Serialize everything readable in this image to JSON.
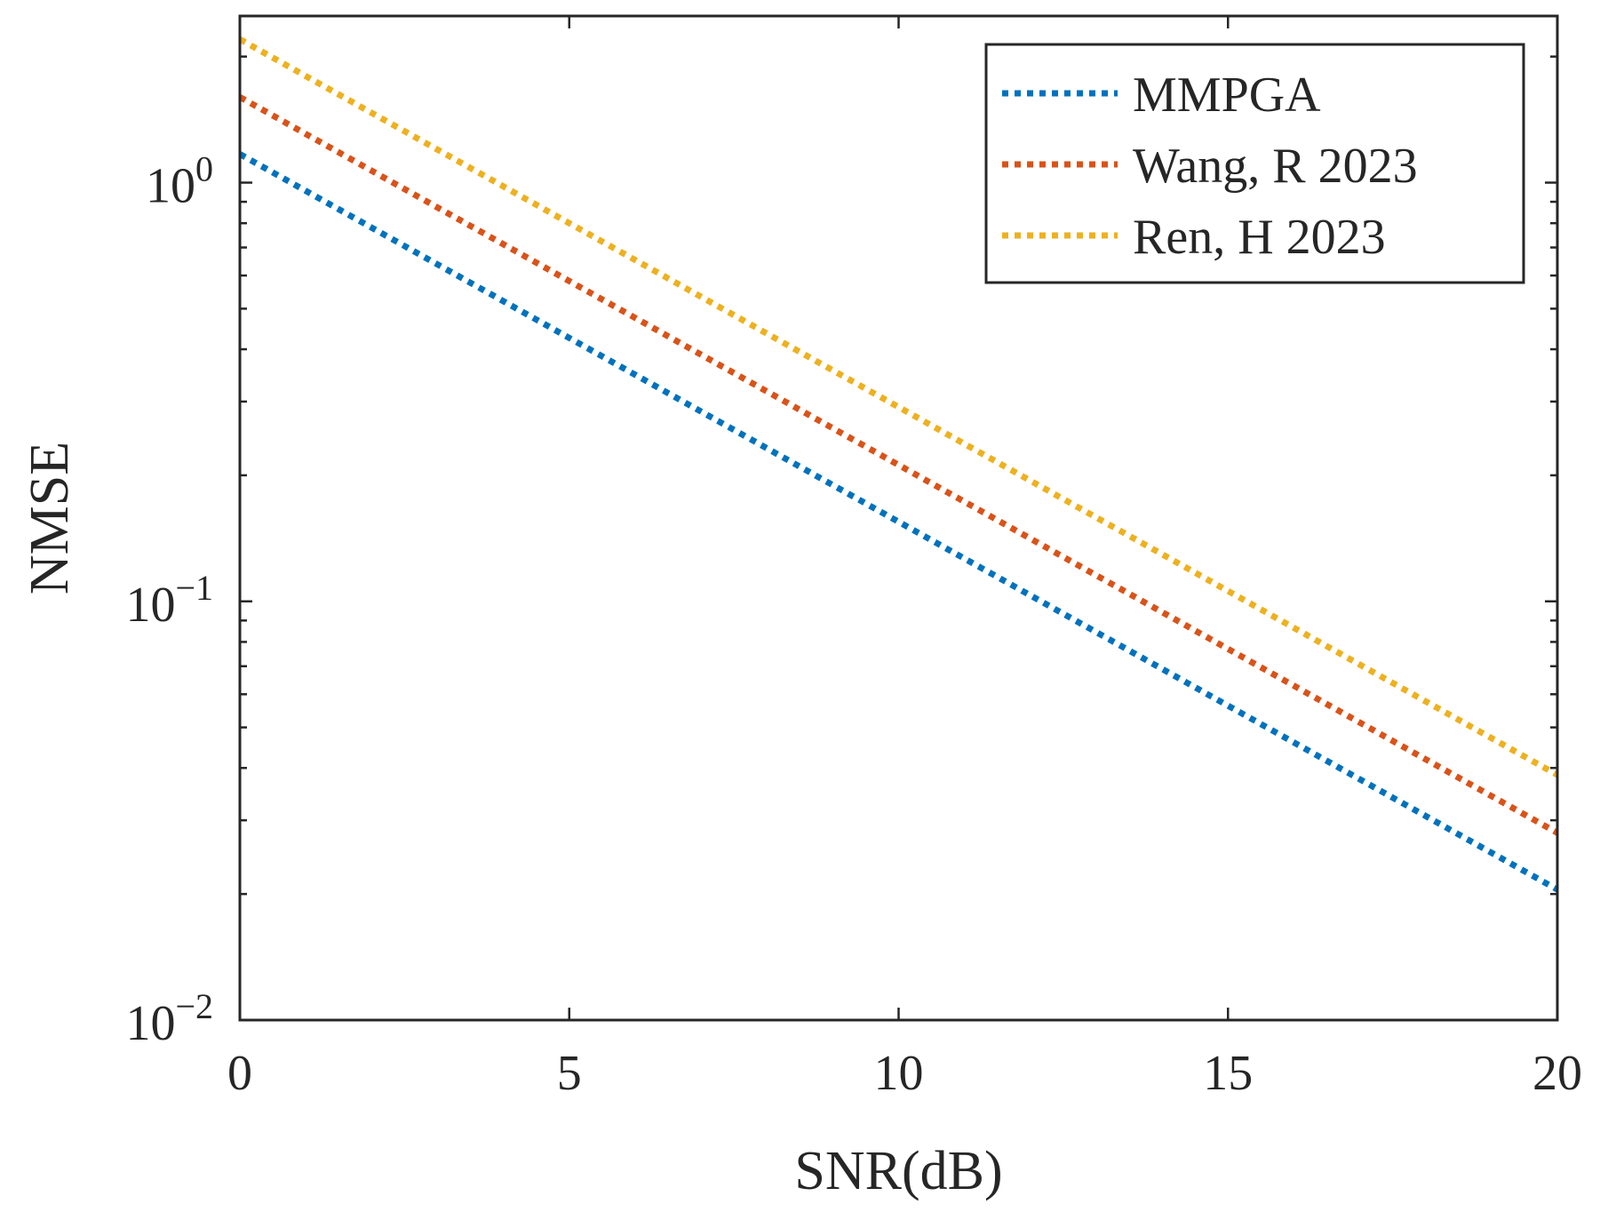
{
  "chart_data": {
    "type": "line",
    "title": "",
    "xlabel": "SNR(dB)",
    "ylabel": "NMSE",
    "yscale": "log",
    "xlim": [
      0,
      20
    ],
    "ylim": [
      0.01,
      2.5
    ],
    "xticks": [
      0,
      5,
      10,
      15,
      20
    ],
    "xtick_labels": [
      "0",
      "5",
      "10",
      "15",
      "20"
    ],
    "yticks": [
      {
        "value": 0.01,
        "base": "10",
        "exp": "−2"
      },
      {
        "value": 0.1,
        "base": "10",
        "exp": "−1"
      },
      {
        "value": 1,
        "base": "10",
        "exp": "0"
      }
    ],
    "grid": false,
    "legend_position": "top-right",
    "line_style": "dotted",
    "x": [
      0,
      20
    ],
    "series": [
      {
        "name": "MMPGA",
        "color": "#0072BD",
        "values": [
          1.17,
          0.0205
        ]
      },
      {
        "name": "Wang, R 2023",
        "color": "#D95319",
        "values": [
          1.6,
          0.028
        ]
      },
      {
        "name": "Ren, H 2023",
        "color": "#EDB120",
        "values": [
          2.2,
          0.0385
        ]
      }
    ]
  }
}
